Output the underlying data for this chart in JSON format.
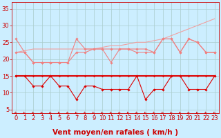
{
  "x": [
    0,
    1,
    2,
    3,
    4,
    5,
    6,
    7,
    8,
    9,
    10,
    11,
    12,
    13,
    14,
    15,
    16,
    17,
    18,
    19,
    20,
    21,
    22,
    23
  ],
  "series": [
    {
      "name": "trend_line",
      "color": "#f0a0a0",
      "linewidth": 0.8,
      "marker": null,
      "markersize": 0,
      "values": [
        22,
        22.5,
        23,
        23,
        23,
        23,
        23,
        23,
        23,
        23,
        23.5,
        24,
        24,
        24.5,
        25,
        25,
        25.5,
        26,
        27,
        28,
        29,
        30,
        31,
        32
      ]
    },
    {
      "name": "rafales_high",
      "color": "#f08080",
      "linewidth": 0.8,
      "marker": "D",
      "markersize": 1.8,
      "values": [
        26,
        22,
        19,
        19,
        19,
        19,
        19,
        26,
        23,
        23,
        23,
        19,
        23,
        23,
        23,
        23,
        22,
        26,
        26,
        22,
        26,
        25,
        22,
        22
      ]
    },
    {
      "name": "vent_moyen",
      "color": "#f08080",
      "linewidth": 0.8,
      "marker": "D",
      "markersize": 1.8,
      "values": [
        22,
        22,
        19,
        19,
        19,
        19,
        19,
        22,
        22,
        23,
        23,
        23,
        23,
        23,
        22,
        22,
        22,
        26,
        26,
        22,
        26,
        25,
        22,
        22
      ]
    },
    {
      "name": "constant_15",
      "color": "#dd0000",
      "linewidth": 1.5,
      "marker": "D",
      "markersize": 1.5,
      "values": [
        15,
        15,
        15,
        15,
        15,
        15,
        15,
        15,
        15,
        15,
        15,
        15,
        15,
        15,
        15,
        15,
        15,
        15,
        15,
        15,
        15,
        15,
        15,
        15
      ]
    },
    {
      "name": "vent_bas",
      "color": "#dd0000",
      "linewidth": 0.8,
      "marker": "D",
      "markersize": 1.8,
      "values": [
        15,
        15,
        12,
        12,
        15,
        12,
        12,
        8,
        12,
        12,
        11,
        11,
        11,
        11,
        15,
        8,
        11,
        11,
        15,
        15,
        11,
        11,
        11,
        15
      ]
    }
  ],
  "xlabel": "Vent moyen/en rafales ( km/h )",
  "xlabel_color": "#cc0000",
  "xlabel_fontsize": 7.5,
  "xticks": [
    0,
    1,
    2,
    3,
    4,
    5,
    6,
    7,
    8,
    9,
    10,
    11,
    12,
    13,
    14,
    15,
    16,
    17,
    18,
    19,
    20,
    21,
    22,
    23
  ],
  "yticks": [
    5,
    10,
    15,
    20,
    25,
    30,
    35
  ],
  "ylim": [
    4,
    37
  ],
  "xlim": [
    -0.5,
    23.5
  ],
  "background_color": "#cceeff",
  "grid_color": "#aacccc",
  "tick_color": "#cc0000",
  "tick_fontsize": 6,
  "arrow_color": "#cc0000"
}
